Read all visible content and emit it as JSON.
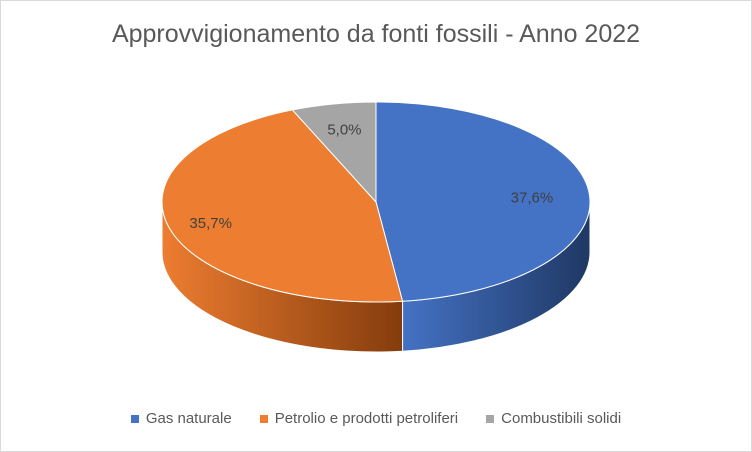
{
  "chart_data": {
    "type": "pie",
    "title": "Approvvigionamento da fonti fossili - Anno 2022",
    "categories": [
      "Gas naturale",
      "Petrolio e prodotti petroliferi",
      "Combustibili solidi"
    ],
    "values": [
      37.6,
      35.7,
      5.0
    ],
    "labels": [
      "37,6%",
      "35,7%",
      "5,0%"
    ],
    "colors": [
      "#4472c4",
      "#ed7d31",
      "#a5a5a5"
    ],
    "side_colors": [
      "#1f3864",
      "#843c0c",
      "#7f7f7f"
    ],
    "style": "3d",
    "legend_position": "bottom"
  }
}
